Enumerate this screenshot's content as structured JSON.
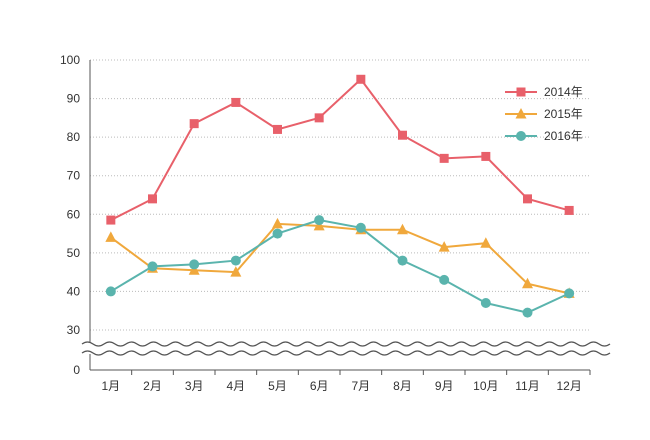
{
  "chart_data": {
    "type": "line",
    "categories": [
      "1月",
      "2月",
      "3月",
      "4月",
      "5月",
      "6月",
      "7月",
      "8月",
      "9月",
      "10月",
      "11月",
      "12月"
    ],
    "y_ticks": [
      "0",
      "30",
      "40",
      "50",
      "60",
      "70",
      "80",
      "90",
      "100"
    ],
    "axis_break": "between 0 and 30",
    "grid": "horizontal dotted",
    "legend_position": "top-right",
    "series": [
      {
        "name": "2014年",
        "color": "#e8606a",
        "marker": "square",
        "values": [
          58.5,
          64,
          83.5,
          89,
          82,
          85,
          95,
          80.5,
          74.5,
          75,
          64,
          61
        ]
      },
      {
        "name": "2015年",
        "color": "#f0a83c",
        "marker": "triangle",
        "values": [
          54,
          46,
          45.5,
          45,
          57.5,
          57,
          56,
          56,
          51.5,
          52.5,
          42,
          39.5
        ]
      },
      {
        "name": "2016年",
        "color": "#5ab4ad",
        "marker": "circle",
        "values": [
          40,
          46.5,
          47,
          48,
          55,
          58.5,
          56.5,
          48,
          43,
          37,
          34.5,
          39.5
        ]
      }
    ]
  }
}
